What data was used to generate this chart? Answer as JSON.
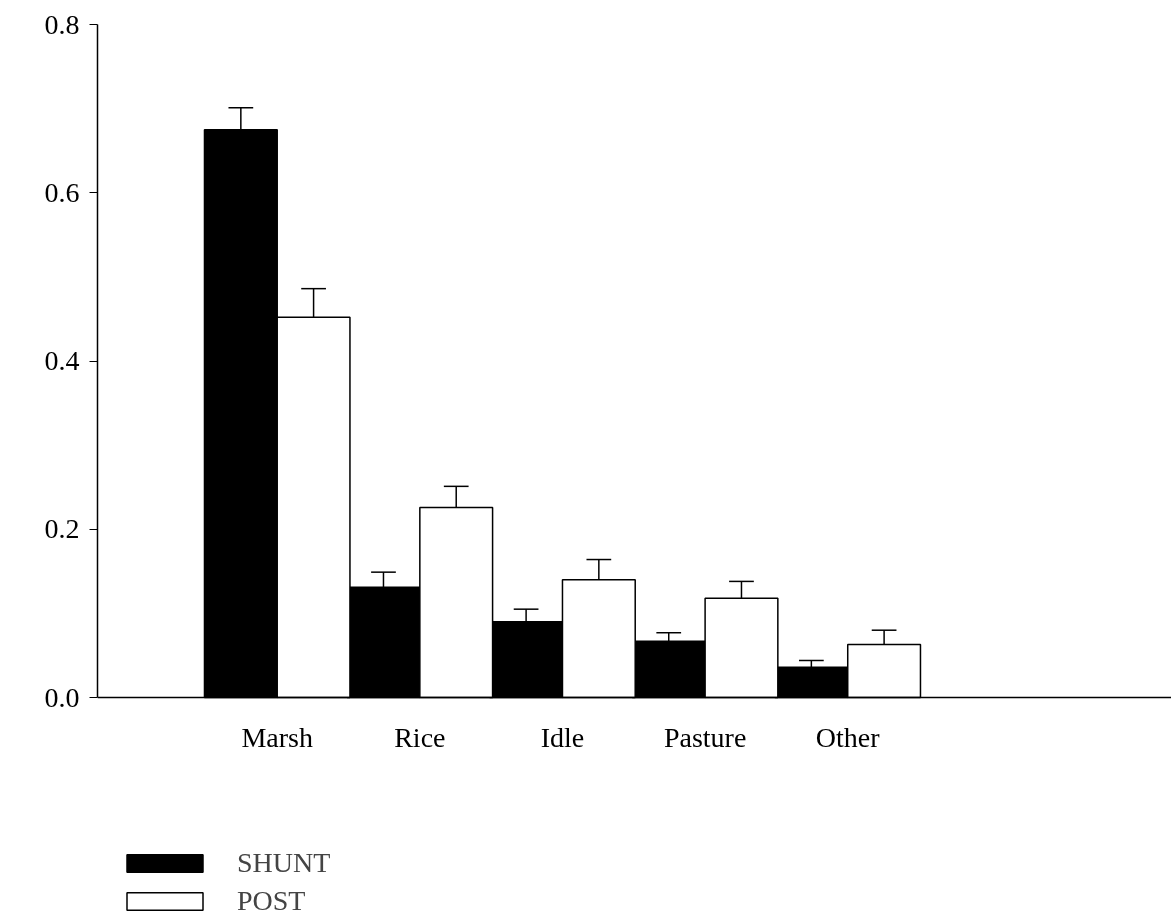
{
  "chart_data": {
    "type": "bar",
    "categories": [
      "Marsh",
      "Rice",
      "Idle",
      "Pasture",
      "Other"
    ],
    "series": [
      {
        "name": "SHUNT",
        "color": "#000000",
        "values": [
          0.675,
          0.131,
          0.09,
          0.067,
          0.036
        ],
        "errors": [
          0.026,
          0.018,
          0.015,
          0.01,
          0.008
        ]
      },
      {
        "name": "POST",
        "color": "#ffffff",
        "values": [
          0.452,
          0.226,
          0.14,
          0.118,
          0.063
        ],
        "errors": [
          0.034,
          0.025,
          0.024,
          0.02,
          0.017
        ]
      }
    ],
    "ylim": [
      0,
      0.8
    ],
    "yticks": [
      {
        "value": 0,
        "label": "0.0"
      },
      {
        "value": 0.2,
        "label": "0.2"
      },
      {
        "value": 0.4,
        "label": "0.4"
      },
      {
        "value": 0.6,
        "label": "0.6"
      },
      {
        "value": 0.8,
        "label": "0.8"
      }
    ],
    "grid": false,
    "legend": "bottom left"
  }
}
